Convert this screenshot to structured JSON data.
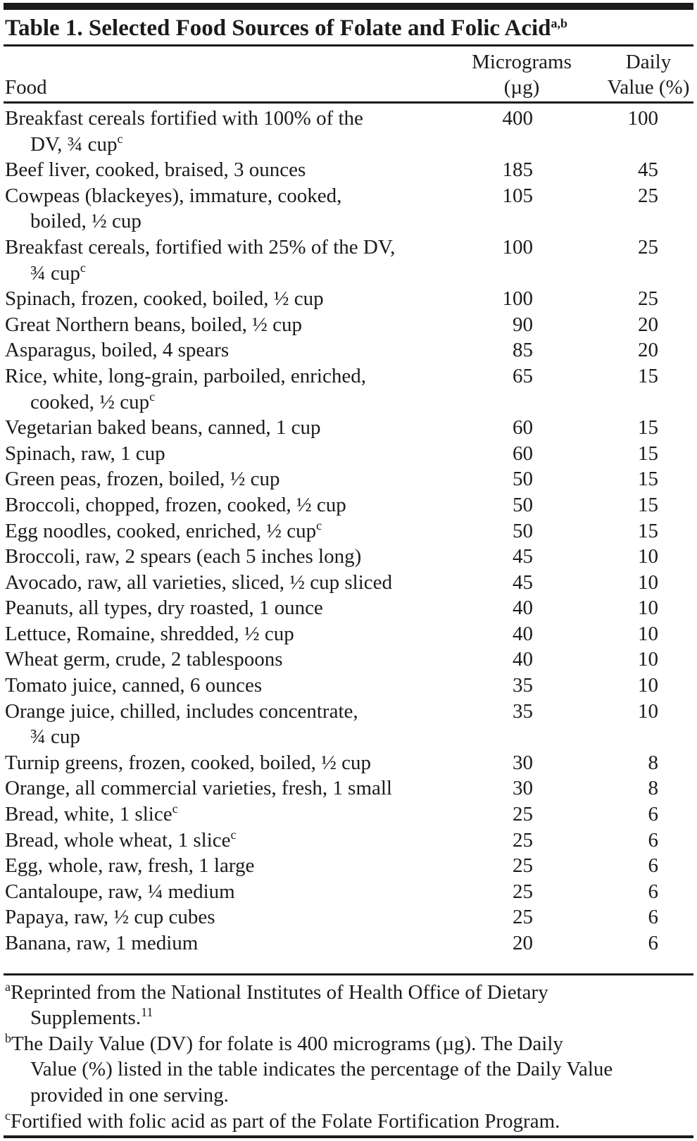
{
  "title": {
    "text": "Table 1. Selected Food Sources of Folate and Folic Acid",
    "superscript": "a,b"
  },
  "colors": {
    "ink": "#1b1b1b",
    "background": "#ffffff"
  },
  "table": {
    "columns": {
      "food": "Food",
      "micrograms_line1": "Micrograms",
      "micrograms_line2": "(µg)",
      "daily_line1": "Daily",
      "daily_line2": "Value (%)"
    },
    "rows": [
      {
        "lines": [
          "Breakfast cereals fortified with 100% of the",
          "DV, ¾ cup"
        ],
        "sup": "c",
        "micrograms": "400",
        "daily_value": "100"
      },
      {
        "lines": [
          "Beef liver, cooked, braised, 3 ounces"
        ],
        "sup": "",
        "micrograms": "185",
        "daily_value": "45"
      },
      {
        "lines": [
          "Cowpeas (blackeyes), immature, cooked,",
          "boiled, ½ cup"
        ],
        "sup": "",
        "micrograms": "105",
        "daily_value": "25"
      },
      {
        "lines": [
          "Breakfast cereals, fortified with 25% of the DV,",
          "¾ cup"
        ],
        "sup": "c",
        "micrograms": "100",
        "daily_value": "25"
      },
      {
        "lines": [
          "Spinach, frozen, cooked, boiled, ½ cup"
        ],
        "sup": "",
        "micrograms": "100",
        "daily_value": "25"
      },
      {
        "lines": [
          "Great Northern beans, boiled, ½ cup"
        ],
        "sup": "",
        "micrograms": "90",
        "daily_value": "20"
      },
      {
        "lines": [
          "Asparagus, boiled, 4 spears"
        ],
        "sup": "",
        "micrograms": "85",
        "daily_value": "20"
      },
      {
        "lines": [
          "Rice, white, long-grain, parboiled, enriched,",
          "cooked, ½ cup"
        ],
        "sup": "c",
        "micrograms": "65",
        "daily_value": "15"
      },
      {
        "lines": [
          "Vegetarian baked beans, canned, 1 cup"
        ],
        "sup": "",
        "micrograms": "60",
        "daily_value": "15"
      },
      {
        "lines": [
          "Spinach, raw, 1 cup"
        ],
        "sup": "",
        "micrograms": "60",
        "daily_value": "15"
      },
      {
        "lines": [
          "Green peas, frozen, boiled, ½ cup"
        ],
        "sup": "",
        "micrograms": "50",
        "daily_value": "15"
      },
      {
        "lines": [
          "Broccoli, chopped, frozen, cooked, ½ cup"
        ],
        "sup": "",
        "micrograms": "50",
        "daily_value": "15"
      },
      {
        "lines": [
          "Egg noodles, cooked, enriched, ½ cup"
        ],
        "sup": "c",
        "micrograms": "50",
        "daily_value": "15"
      },
      {
        "lines": [
          "Broccoli, raw, 2 spears (each 5 inches long)"
        ],
        "sup": "",
        "micrograms": "45",
        "daily_value": "10"
      },
      {
        "lines": [
          "Avocado, raw, all varieties, sliced, ½ cup sliced"
        ],
        "sup": "",
        "micrograms": "45",
        "daily_value": "10"
      },
      {
        "lines": [
          "Peanuts, all types, dry roasted, 1 ounce"
        ],
        "sup": "",
        "micrograms": "40",
        "daily_value": "10"
      },
      {
        "lines": [
          "Lettuce, Romaine, shredded, ½ cup"
        ],
        "sup": "",
        "micrograms": "40",
        "daily_value": "10"
      },
      {
        "lines": [
          "Wheat germ, crude, 2 tablespoons"
        ],
        "sup": "",
        "micrograms": "40",
        "daily_value": "10"
      },
      {
        "lines": [
          "Tomato juice, canned, 6 ounces"
        ],
        "sup": "",
        "micrograms": "35",
        "daily_value": "10"
      },
      {
        "lines": [
          "Orange juice, chilled, includes concentrate,",
          "¾ cup"
        ],
        "sup": "",
        "micrograms": "35",
        "daily_value": "10"
      },
      {
        "lines": [
          "Turnip greens, frozen, cooked, boiled, ½ cup"
        ],
        "sup": "",
        "micrograms": "30",
        "daily_value": "8"
      },
      {
        "lines": [
          "Orange, all commercial varieties, fresh, 1 small"
        ],
        "sup": "",
        "micrograms": "30",
        "daily_value": "8"
      },
      {
        "lines": [
          "Bread, white, 1 slice"
        ],
        "sup": "c",
        "micrograms": "25",
        "daily_value": "6"
      },
      {
        "lines": [
          "Bread, whole wheat, 1 slice"
        ],
        "sup": "c",
        "micrograms": "25",
        "daily_value": "6"
      },
      {
        "lines": [
          "Egg, whole, raw, fresh, 1 large"
        ],
        "sup": "",
        "micrograms": "25",
        "daily_value": "6"
      },
      {
        "lines": [
          "Cantaloupe, raw, ¼ medium"
        ],
        "sup": "",
        "micrograms": "25",
        "daily_value": "6"
      },
      {
        "lines": [
          "Papaya, raw, ½ cup cubes"
        ],
        "sup": "",
        "micrograms": "25",
        "daily_value": "6"
      },
      {
        "lines": [
          "Banana, raw, 1 medium"
        ],
        "sup": "",
        "micrograms": "20",
        "daily_value": "6"
      }
    ]
  },
  "footnotes": [
    {
      "marker": "a",
      "lines": [
        "Reprinted from the National Institutes of Health Office of Dietary",
        "Supplements."
      ],
      "end_superscript": "11"
    },
    {
      "marker": "b",
      "lines": [
        "The Daily Value (DV) for folate is 400 micrograms (µg). The Daily",
        "Value (%) listed in the table indicates the percentage of the Daily Value",
        "provided in one serving."
      ],
      "end_superscript": ""
    },
    {
      "marker": "c",
      "lines": [
        "Fortified with folic acid as part of the Folate Fortification Program."
      ],
      "end_superscript": ""
    }
  ]
}
